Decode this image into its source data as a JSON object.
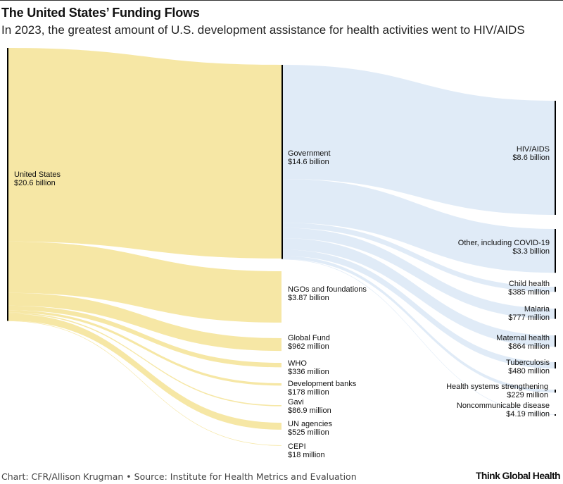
{
  "title": "The United States’ Funding Flows",
  "subtitle": "In 2023, the greatest amount of U.S. development assistance for health activities went to HIV/AIDS",
  "footer": {
    "source": "Chart: CFR/Allison Krugman • Source: Institute for Health Metrics and Evaluation",
    "logo": "Think Global Health"
  },
  "colors": {
    "source_flow": "#f5e6a0",
    "government_flow": "#dde9f6",
    "node_bar": "#000000"
  },
  "chart_data": {
    "type": "sankey",
    "nodes": [
      {
        "id": "us",
        "name": "United States",
        "value_label": "$20.6 billion",
        "column": 0
      },
      {
        "id": "gov",
        "name": "Government",
        "value_label": "$14.6 billion",
        "column": 1
      },
      {
        "id": "ngo",
        "name": "NGOs and foundations",
        "value_label": "$3.87 billion",
        "column": 1
      },
      {
        "id": "gf",
        "name": "Global Fund",
        "value_label": "$962 million",
        "column": 1
      },
      {
        "id": "who",
        "name": "WHO",
        "value_label": "$336 million",
        "column": 1
      },
      {
        "id": "db",
        "name": "Development banks",
        "value_label": "$178 million",
        "column": 1
      },
      {
        "id": "gavi",
        "name": "Gavi",
        "value_label": "$86.9 million",
        "column": 1
      },
      {
        "id": "un",
        "name": "UN agencies",
        "value_label": "$525 million",
        "column": 1
      },
      {
        "id": "cepi",
        "name": "CEPI",
        "value_label": "$18 million",
        "column": 1
      },
      {
        "id": "hiv",
        "name": "HIV/AIDS",
        "value_label": "$8.6 billion",
        "column": 2
      },
      {
        "id": "other",
        "name": "Other, including COVID-19",
        "value_label": "$3.3 billion",
        "column": 2
      },
      {
        "id": "child",
        "name": "Child health",
        "value_label": "$385 million",
        "column": 2
      },
      {
        "id": "malaria",
        "name": "Malaria",
        "value_label": "$777 million",
        "column": 2
      },
      {
        "id": "maternal",
        "name": "Maternal health",
        "value_label": "$864 million",
        "column": 2
      },
      {
        "id": "tb",
        "name": "Tuberculosis",
        "value_label": "$480 million",
        "column": 2
      },
      {
        "id": "hss",
        "name": "Health systems strengthening",
        "value_label": "$229 million",
        "column": 2
      },
      {
        "id": "ncd",
        "name": "Noncommunicable disease",
        "value_label": "$4.19 million",
        "column": 2
      }
    ],
    "links": [
      {
        "source": "us",
        "target": "gov",
        "value": 14600
      },
      {
        "source": "us",
        "target": "ngo",
        "value": 3870
      },
      {
        "source": "us",
        "target": "gf",
        "value": 962
      },
      {
        "source": "us",
        "target": "who",
        "value": 336
      },
      {
        "source": "us",
        "target": "db",
        "value": 178
      },
      {
        "source": "us",
        "target": "gavi",
        "value": 86.9
      },
      {
        "source": "us",
        "target": "un",
        "value": 525
      },
      {
        "source": "us",
        "target": "cepi",
        "value": 18
      },
      {
        "source": "gov",
        "target": "hiv",
        "value": 8600
      },
      {
        "source": "gov",
        "target": "other",
        "value": 3300
      },
      {
        "source": "gov",
        "target": "child",
        "value": 385
      },
      {
        "source": "gov",
        "target": "malaria",
        "value": 777
      },
      {
        "source": "gov",
        "target": "maternal",
        "value": 864
      },
      {
        "source": "gov",
        "target": "tb",
        "value": 480
      },
      {
        "source": "gov",
        "target": "hss",
        "value": 229
      },
      {
        "source": "gov",
        "target": "ncd",
        "value": 4.19
      }
    ]
  }
}
